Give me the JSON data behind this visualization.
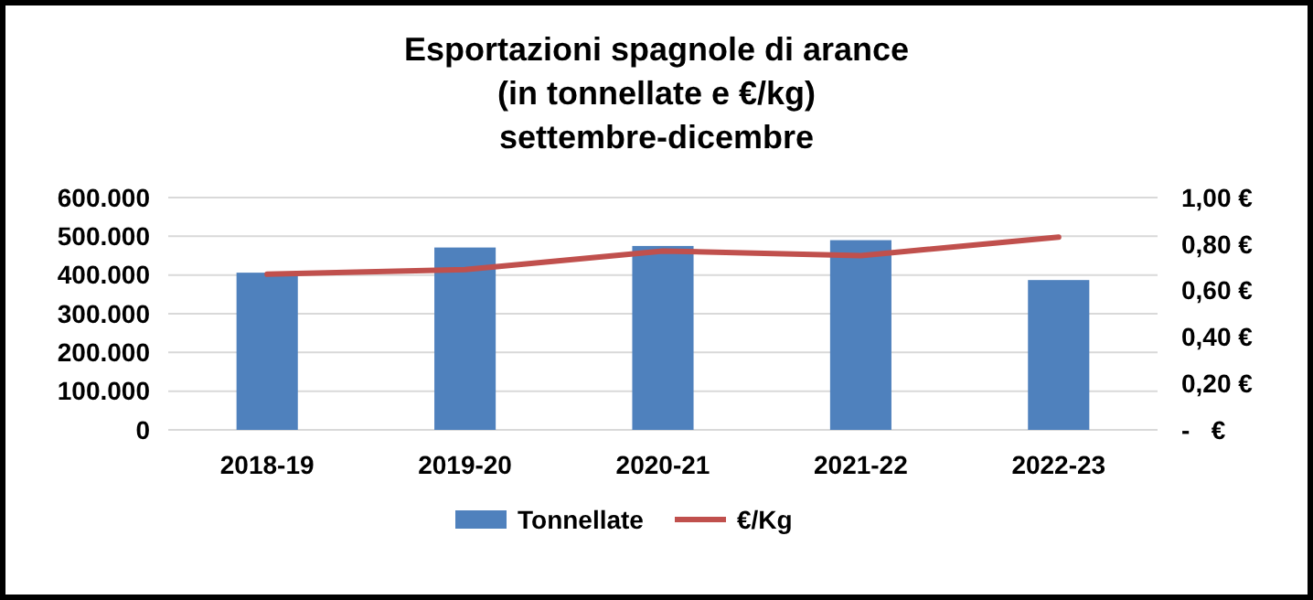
{
  "chart_data": {
    "type": "bar",
    "title": "Esportazioni spagnole di arance\n(in tonnellate e €/kg)\nsettembre-dicembre",
    "categories": [
      "2018-19",
      "2019-20",
      "2020-21",
      "2021-22",
      "2022-23"
    ],
    "series": [
      {
        "name": "Tonnellate",
        "color": "#4f81bd",
        "values": [
          406000,
          471000,
          475000,
          490000,
          387000
        ]
      },
      {
        "name": "€/Kg",
        "type": "line",
        "axis": "y2",
        "color": "#c0504d",
        "values": [
          0.67,
          0.69,
          0.77,
          0.75,
          0.83
        ]
      }
    ],
    "ylim": [
      0,
      600000
    ],
    "yticks": [
      {
        "value": 0,
        "label": "0"
      },
      {
        "value": 100000,
        "label": "100.000"
      },
      {
        "value": 200000,
        "label": "200.000"
      },
      {
        "value": 300000,
        "label": "300.000"
      },
      {
        "value": 400000,
        "label": "400.000"
      },
      {
        "value": 500000,
        "label": "500.000"
      },
      {
        "value": 600000,
        "label": "600.000"
      }
    ],
    "y2lim": [
      0,
      1
    ],
    "y2ticks": [
      {
        "value": 0,
        "label": "-   €"
      },
      {
        "value": 0.2,
        "label": "0,20 €"
      },
      {
        "value": 0.4,
        "label": "0,40 €"
      },
      {
        "value": 0.6,
        "label": "0,60 €"
      },
      {
        "value": 0.8,
        "label": "0,80 €"
      },
      {
        "value": 1,
        "label": "1,00 €"
      }
    ],
    "grid": "y",
    "legend": "bottom",
    "marker": "none",
    "line_style": "solid"
  }
}
